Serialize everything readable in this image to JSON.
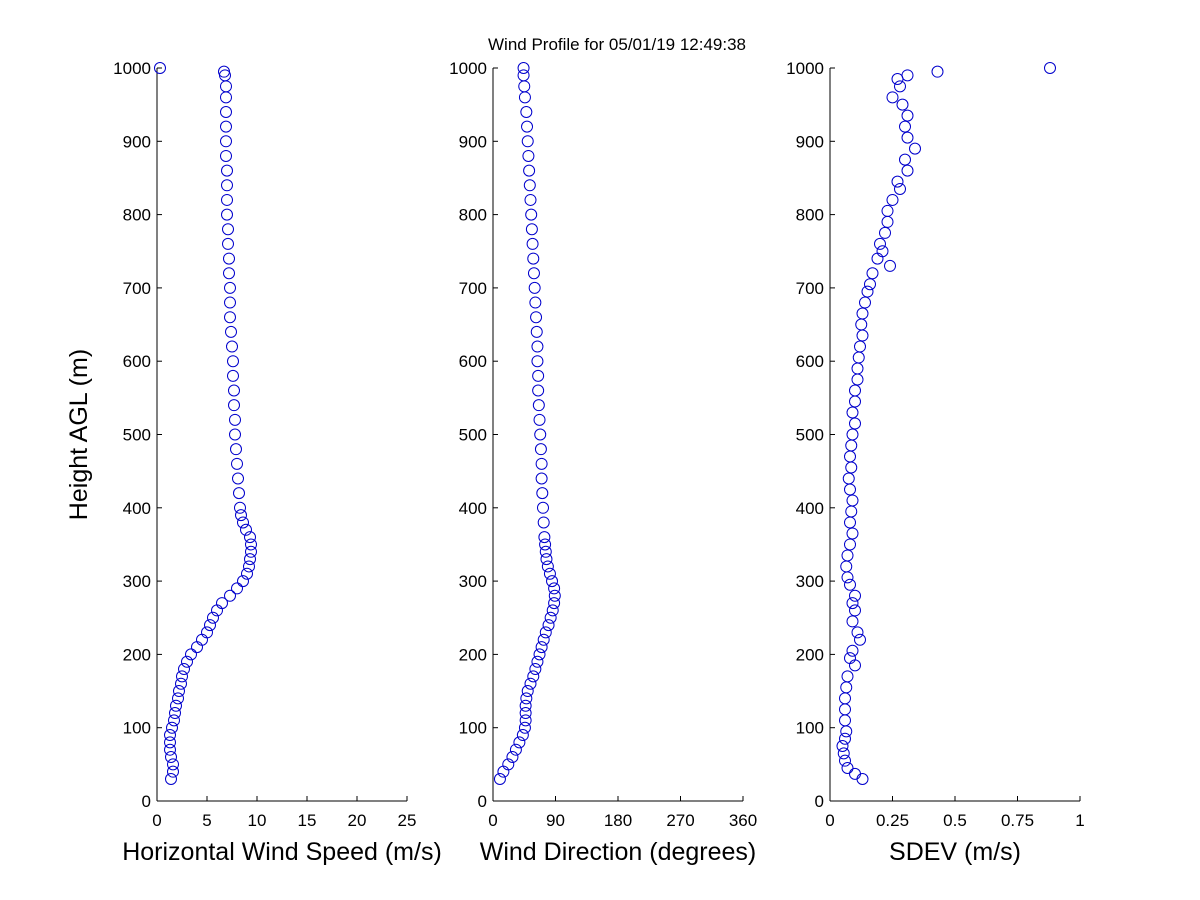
{
  "title": "Wind Profile for  05/01/19 12:49:38",
  "marker_color": "#0000cc",
  "chart_data": [
    {
      "type": "scatter",
      "xlabel": "Horizontal Wind Speed (m/s)",
      "ylabel": "Height AGL (m)",
      "xlim": [
        0,
        25
      ],
      "ylim": [
        0,
        1000
      ],
      "x_ticks": [
        "0",
        "5",
        "10",
        "15",
        "20",
        "25"
      ],
      "y_ticks": [
        "0",
        "100",
        "200",
        "300",
        "400",
        "500",
        "600",
        "700",
        "800",
        "900",
        "1000"
      ],
      "grid": false,
      "points": [
        {
          "y": 30,
          "x": 1.4
        },
        {
          "y": 40,
          "x": 1.6
        },
        {
          "y": 50,
          "x": 1.6
        },
        {
          "y": 60,
          "x": 1.4
        },
        {
          "y": 70,
          "x": 1.3
        },
        {
          "y": 80,
          "x": 1.3
        },
        {
          "y": 90,
          "x": 1.3
        },
        {
          "y": 100,
          "x": 1.5
        },
        {
          "y": 110,
          "x": 1.7
        },
        {
          "y": 120,
          "x": 1.8
        },
        {
          "y": 130,
          "x": 1.9
        },
        {
          "y": 140,
          "x": 2.1
        },
        {
          "y": 150,
          "x": 2.2
        },
        {
          "y": 160,
          "x": 2.4
        },
        {
          "y": 170,
          "x": 2.5
        },
        {
          "y": 180,
          "x": 2.7
        },
        {
          "y": 190,
          "x": 3.0
        },
        {
          "y": 200,
          "x": 3.4
        },
        {
          "y": 210,
          "x": 4.0
        },
        {
          "y": 220,
          "x": 4.5
        },
        {
          "y": 230,
          "x": 5.0
        },
        {
          "y": 240,
          "x": 5.3
        },
        {
          "y": 250,
          "x": 5.6
        },
        {
          "y": 260,
          "x": 6.0
        },
        {
          "y": 270,
          "x": 6.5
        },
        {
          "y": 280,
          "x": 7.3
        },
        {
          "y": 290,
          "x": 8.0
        },
        {
          "y": 300,
          "x": 8.6
        },
        {
          "y": 310,
          "x": 9.0
        },
        {
          "y": 320,
          "x": 9.2
        },
        {
          "y": 330,
          "x": 9.3
        },
        {
          "y": 340,
          "x": 9.4
        },
        {
          "y": 350,
          "x": 9.4
        },
        {
          "y": 360,
          "x": 9.3
        },
        {
          "y": 370,
          "x": 8.9
        },
        {
          "y": 380,
          "x": 8.6
        },
        {
          "y": 390,
          "x": 8.4
        },
        {
          "y": 400,
          "x": 8.3
        },
        {
          "y": 420,
          "x": 8.2
        },
        {
          "y": 440,
          "x": 8.1
        },
        {
          "y": 460,
          "x": 8.0
        },
        {
          "y": 480,
          "x": 7.9
        },
        {
          "y": 500,
          "x": 7.8
        },
        {
          "y": 520,
          "x": 7.8
        },
        {
          "y": 540,
          "x": 7.7
        },
        {
          "y": 560,
          "x": 7.7
        },
        {
          "y": 580,
          "x": 7.6
        },
        {
          "y": 600,
          "x": 7.6
        },
        {
          "y": 620,
          "x": 7.5
        },
        {
          "y": 640,
          "x": 7.4
        },
        {
          "y": 660,
          "x": 7.3
        },
        {
          "y": 680,
          "x": 7.3
        },
        {
          "y": 700,
          "x": 7.3
        },
        {
          "y": 720,
          "x": 7.2
        },
        {
          "y": 740,
          "x": 7.2
        },
        {
          "y": 760,
          "x": 7.1
        },
        {
          "y": 780,
          "x": 7.1
        },
        {
          "y": 800,
          "x": 7.0
        },
        {
          "y": 820,
          "x": 7.0
        },
        {
          "y": 840,
          "x": 7.0
        },
        {
          "y": 860,
          "x": 7.0
        },
        {
          "y": 880,
          "x": 6.9
        },
        {
          "y": 900,
          "x": 6.9
        },
        {
          "y": 920,
          "x": 6.9
        },
        {
          "y": 940,
          "x": 6.9
        },
        {
          "y": 960,
          "x": 6.9
        },
        {
          "y": 975,
          "x": 6.9
        },
        {
          "y": 990,
          "x": 6.8
        },
        {
          "y": 995,
          "x": 6.7
        },
        {
          "y": 1000,
          "x": 0.3
        }
      ]
    },
    {
      "type": "scatter",
      "xlabel": "Wind Direction (degrees)",
      "ylabel": "",
      "xlim": [
        0,
        360
      ],
      "ylim": [
        0,
        1000
      ],
      "x_ticks": [
        "0",
        "90",
        "180",
        "270",
        "360"
      ],
      "y_ticks": [
        "0",
        "100",
        "200",
        "300",
        "400",
        "500",
        "600",
        "700",
        "800",
        "900",
        "1000"
      ],
      "grid": false,
      "points": [
        {
          "y": 30,
          "x": 10
        },
        {
          "y": 40,
          "x": 15
        },
        {
          "y": 50,
          "x": 22
        },
        {
          "y": 60,
          "x": 28
        },
        {
          "y": 70,
          "x": 33
        },
        {
          "y": 80,
          "x": 38
        },
        {
          "y": 90,
          "x": 43
        },
        {
          "y": 100,
          "x": 46
        },
        {
          "y": 110,
          "x": 47
        },
        {
          "y": 120,
          "x": 47
        },
        {
          "y": 130,
          "x": 47
        },
        {
          "y": 140,
          "x": 48
        },
        {
          "y": 150,
          "x": 50
        },
        {
          "y": 160,
          "x": 54
        },
        {
          "y": 170,
          "x": 58
        },
        {
          "y": 180,
          "x": 61
        },
        {
          "y": 190,
          "x": 64
        },
        {
          "y": 200,
          "x": 67
        },
        {
          "y": 210,
          "x": 70
        },
        {
          "y": 220,
          "x": 73
        },
        {
          "y": 230,
          "x": 76
        },
        {
          "y": 240,
          "x": 80
        },
        {
          "y": 250,
          "x": 83
        },
        {
          "y": 260,
          "x": 86
        },
        {
          "y": 270,
          "x": 88
        },
        {
          "y": 280,
          "x": 89
        },
        {
          "y": 290,
          "x": 88
        },
        {
          "y": 300,
          "x": 85
        },
        {
          "y": 310,
          "x": 82
        },
        {
          "y": 320,
          "x": 79
        },
        {
          "y": 330,
          "x": 77
        },
        {
          "y": 340,
          "x": 76
        },
        {
          "y": 350,
          "x": 75
        },
        {
          "y": 360,
          "x": 74
        },
        {
          "y": 380,
          "x": 73
        },
        {
          "y": 400,
          "x": 72
        },
        {
          "y": 420,
          "x": 71
        },
        {
          "y": 440,
          "x": 70
        },
        {
          "y": 460,
          "x": 70
        },
        {
          "y": 480,
          "x": 69
        },
        {
          "y": 500,
          "x": 68
        },
        {
          "y": 520,
          "x": 67
        },
        {
          "y": 540,
          "x": 66
        },
        {
          "y": 560,
          "x": 65
        },
        {
          "y": 580,
          "x": 65
        },
        {
          "y": 600,
          "x": 64
        },
        {
          "y": 620,
          "x": 64
        },
        {
          "y": 640,
          "x": 63
        },
        {
          "y": 660,
          "x": 62
        },
        {
          "y": 680,
          "x": 61
        },
        {
          "y": 700,
          "x": 60
        },
        {
          "y": 720,
          "x": 59
        },
        {
          "y": 740,
          "x": 58
        },
        {
          "y": 760,
          "x": 57
        },
        {
          "y": 780,
          "x": 56
        },
        {
          "y": 800,
          "x": 55
        },
        {
          "y": 820,
          "x": 54
        },
        {
          "y": 840,
          "x": 53
        },
        {
          "y": 860,
          "x": 52
        },
        {
          "y": 880,
          "x": 51
        },
        {
          "y": 900,
          "x": 50
        },
        {
          "y": 920,
          "x": 49
        },
        {
          "y": 940,
          "x": 48
        },
        {
          "y": 960,
          "x": 46
        },
        {
          "y": 975,
          "x": 45
        },
        {
          "y": 990,
          "x": 44
        },
        {
          "y": 1000,
          "x": 44
        }
      ]
    },
    {
      "type": "scatter",
      "xlabel": "SDEV  (m/s)",
      "ylabel": "",
      "xlim": [
        0,
        1
      ],
      "ylim": [
        0,
        1000
      ],
      "x_ticks": [
        "0",
        "0.25",
        "0.5",
        "0.75",
        "1"
      ],
      "y_ticks": [
        "0",
        "100",
        "200",
        "300",
        "400",
        "500",
        "600",
        "700",
        "800",
        "900",
        "1000"
      ],
      "grid": false,
      "points": [
        {
          "y": 30,
          "x": 0.13
        },
        {
          "y": 37,
          "x": 0.1
        },
        {
          "y": 45,
          "x": 0.07
        },
        {
          "y": 55,
          "x": 0.06
        },
        {
          "y": 65,
          "x": 0.055
        },
        {
          "y": 75,
          "x": 0.05
        },
        {
          "y": 85,
          "x": 0.06
        },
        {
          "y": 95,
          "x": 0.065
        },
        {
          "y": 110,
          "x": 0.06
        },
        {
          "y": 125,
          "x": 0.06
        },
        {
          "y": 140,
          "x": 0.06
        },
        {
          "y": 155,
          "x": 0.065
        },
        {
          "y": 170,
          "x": 0.07
        },
        {
          "y": 185,
          "x": 0.1
        },
        {
          "y": 195,
          "x": 0.08
        },
        {
          "y": 205,
          "x": 0.09
        },
        {
          "y": 220,
          "x": 0.12
        },
        {
          "y": 230,
          "x": 0.11
        },
        {
          "y": 245,
          "x": 0.09
        },
        {
          "y": 260,
          "x": 0.1
        },
        {
          "y": 270,
          "x": 0.09
        },
        {
          "y": 280,
          "x": 0.1
        },
        {
          "y": 295,
          "x": 0.08
        },
        {
          "y": 305,
          "x": 0.07
        },
        {
          "y": 320,
          "x": 0.065
        },
        {
          "y": 335,
          "x": 0.07
        },
        {
          "y": 350,
          "x": 0.08
        },
        {
          "y": 365,
          "x": 0.09
        },
        {
          "y": 380,
          "x": 0.08
        },
        {
          "y": 395,
          "x": 0.085
        },
        {
          "y": 410,
          "x": 0.09
        },
        {
          "y": 425,
          "x": 0.08
        },
        {
          "y": 440,
          "x": 0.075
        },
        {
          "y": 455,
          "x": 0.085
        },
        {
          "y": 470,
          "x": 0.08
        },
        {
          "y": 485,
          "x": 0.085
        },
        {
          "y": 500,
          "x": 0.09
        },
        {
          "y": 515,
          "x": 0.1
        },
        {
          "y": 530,
          "x": 0.09
        },
        {
          "y": 545,
          "x": 0.1
        },
        {
          "y": 560,
          "x": 0.1
        },
        {
          "y": 575,
          "x": 0.11
        },
        {
          "y": 590,
          "x": 0.11
        },
        {
          "y": 605,
          "x": 0.115
        },
        {
          "y": 620,
          "x": 0.12
        },
        {
          "y": 635,
          "x": 0.13
        },
        {
          "y": 650,
          "x": 0.125
        },
        {
          "y": 665,
          "x": 0.13
        },
        {
          "y": 680,
          "x": 0.14
        },
        {
          "y": 695,
          "x": 0.15
        },
        {
          "y": 705,
          "x": 0.16
        },
        {
          "y": 720,
          "x": 0.17
        },
        {
          "y": 730,
          "x": 0.24
        },
        {
          "y": 740,
          "x": 0.19
        },
        {
          "y": 750,
          "x": 0.21
        },
        {
          "y": 760,
          "x": 0.2
        },
        {
          "y": 775,
          "x": 0.22
        },
        {
          "y": 790,
          "x": 0.23
        },
        {
          "y": 805,
          "x": 0.23
        },
        {
          "y": 820,
          "x": 0.25
        },
        {
          "y": 835,
          "x": 0.28
        },
        {
          "y": 845,
          "x": 0.27
        },
        {
          "y": 860,
          "x": 0.31
        },
        {
          "y": 875,
          "x": 0.3
        },
        {
          "y": 890,
          "x": 0.34
        },
        {
          "y": 905,
          "x": 0.31
        },
        {
          "y": 920,
          "x": 0.3
        },
        {
          "y": 935,
          "x": 0.31
        },
        {
          "y": 950,
          "x": 0.29
        },
        {
          "y": 960,
          "x": 0.25
        },
        {
          "y": 975,
          "x": 0.28
        },
        {
          "y": 985,
          "x": 0.27
        },
        {
          "y": 990,
          "x": 0.31
        },
        {
          "y": 995,
          "x": 0.43
        },
        {
          "y": 1000,
          "x": 0.88
        }
      ]
    }
  ]
}
